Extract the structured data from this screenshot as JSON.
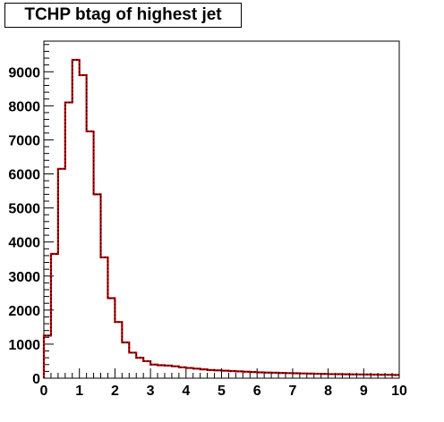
{
  "chart_data": {
    "type": "histogram",
    "title": "TCHP btag of highest jet",
    "xlabel": "",
    "ylabel": "",
    "xlim": [
      0,
      10
    ],
    "ylim": [
      0,
      9900
    ],
    "bin_width": 0.2,
    "x_ticks": [
      0,
      1,
      2,
      3,
      4,
      5,
      6,
      7,
      8,
      9,
      10
    ],
    "y_ticks": [
      0,
      1000,
      2000,
      3000,
      4000,
      5000,
      6000,
      7000,
      8000,
      9000
    ],
    "grid": false,
    "legend": "none",
    "series": [
      {
        "color": "#cc0000",
        "style": "solid",
        "values": [
          1250,
          3650,
          6150,
          8100,
          9350,
          8900,
          7250,
          5400,
          3550,
          2350,
          1650,
          1050,
          750,
          600,
          500,
          400,
          380,
          370,
          350,
          320,
          300,
          280,
          260,
          240,
          230,
          220,
          210,
          200,
          190,
          180,
          170,
          165,
          160,
          155,
          150,
          145,
          140,
          135,
          130,
          125,
          120,
          118,
          115,
          112,
          110,
          108,
          105,
          102,
          100,
          95
        ]
      },
      {
        "color": "#000000",
        "style": "dotted",
        "values": [
          1250,
          3650,
          6150,
          8100,
          9350,
          8900,
          7250,
          5400,
          3550,
          2350,
          1650,
          1050,
          750,
          600,
          500,
          400,
          380,
          370,
          350,
          320,
          300,
          280,
          260,
          240,
          230,
          220,
          210,
          200,
          190,
          180,
          170,
          165,
          160,
          155,
          150,
          145,
          140,
          135,
          130,
          125,
          120,
          118,
          115,
          112,
          110,
          108,
          105,
          102,
          100,
          95
        ]
      }
    ]
  }
}
